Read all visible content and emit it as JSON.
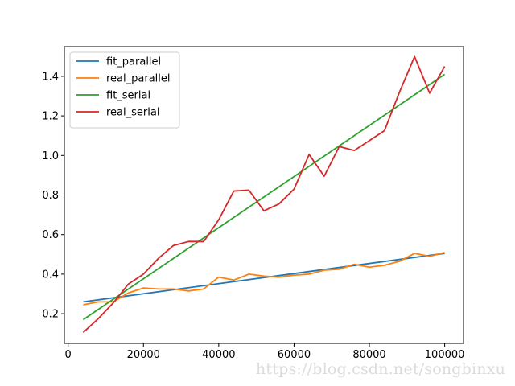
{
  "chart_data": {
    "type": "line",
    "title": "",
    "xlabel": "",
    "ylabel": "",
    "xlim": [
      -1000,
      105000
    ],
    "ylim": [
      0.05,
      1.55
    ],
    "x_ticks": [
      0,
      20000,
      40000,
      60000,
      80000,
      100000
    ],
    "x_tick_labels": [
      "0",
      "20000",
      "40000",
      "60000",
      "80000",
      "100000"
    ],
    "y_ticks": [
      0.2,
      0.4,
      0.6,
      0.8,
      1.0,
      1.2,
      1.4
    ],
    "y_tick_labels": [
      "0.2",
      "0.4",
      "0.6",
      "0.8",
      "1.0",
      "1.2",
      "1.4"
    ],
    "grid": false,
    "legend_position": "upper-left",
    "series": [
      {
        "name": "fit_parallel",
        "color": "#1f77b4",
        "x": [
          4000,
          100000
        ],
        "y": [
          0.26,
          0.505
        ]
      },
      {
        "name": "real_parallel",
        "color": "#ff7f0e",
        "x": [
          4000,
          8000,
          12000,
          16000,
          20000,
          24000,
          28000,
          32000,
          36000,
          40000,
          44000,
          48000,
          52000,
          56000,
          60000,
          64000,
          68000,
          72000,
          76000,
          80000,
          84000,
          88000,
          92000,
          96000,
          100000
        ],
        "y": [
          0.245,
          0.26,
          0.26,
          0.305,
          0.33,
          0.325,
          0.325,
          0.315,
          0.325,
          0.385,
          0.37,
          0.4,
          0.39,
          0.385,
          0.395,
          0.4,
          0.42,
          0.425,
          0.45,
          0.435,
          0.445,
          0.465,
          0.505,
          0.49,
          0.51
        ]
      },
      {
        "name": "fit_serial",
        "color": "#2ca02c",
        "x": [
          4000,
          100000
        ],
        "y": [
          0.17,
          1.41
        ]
      },
      {
        "name": "real_serial",
        "color": "#d62728",
        "x": [
          4000,
          8000,
          12000,
          16000,
          20000,
          24000,
          28000,
          32000,
          36000,
          40000,
          44000,
          48000,
          52000,
          56000,
          60000,
          64000,
          68000,
          72000,
          76000,
          80000,
          84000,
          88000,
          92000,
          96000,
          100000
        ],
        "y": [
          0.105,
          0.175,
          0.255,
          0.35,
          0.4,
          0.48,
          0.545,
          0.565,
          0.565,
          0.675,
          0.82,
          0.825,
          0.72,
          0.755,
          0.83,
          1.005,
          0.895,
          1.045,
          1.025,
          1.075,
          1.125,
          1.32,
          1.5,
          1.315,
          1.45
        ]
      }
    ]
  },
  "watermark": "https://blog.csdn.net/songbinxu"
}
